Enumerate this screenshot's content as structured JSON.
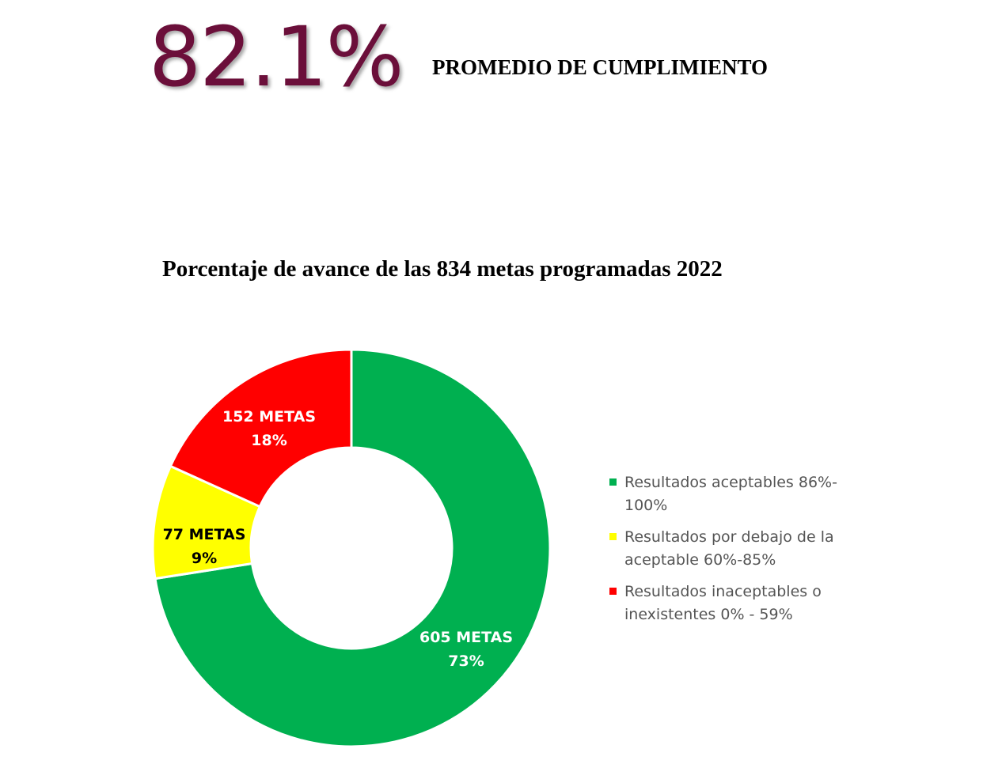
{
  "summary": {
    "value": "82.1%",
    "label": "PROMEDIO DE CUMPLIMIENTO"
  },
  "chart_data": {
    "type": "pie",
    "style": "donut",
    "title": "Porcentaje de avance de las 834 metas programadas 2022",
    "legend_position": "right",
    "slices": [
      {
        "name": "Resultados aceptables 86%-100%",
        "legend_line1": "Resultados aceptables 86%-",
        "legend_line2": "100%",
        "value": 605,
        "percent": 73,
        "label_count": "605 METAS",
        "label_percent": "73%",
        "color": "#00b050",
        "label_color": "#ffffff"
      },
      {
        "name": "Resultados por debajo de la aceptable 60%-85%",
        "legend_line1": "Resultados por debajo de la",
        "legend_line2": "aceptable 60%-85%",
        "value": 77,
        "percent": 9,
        "label_count": "77 METAS",
        "label_percent": "9%",
        "color": "#ffff00",
        "label_color": "#000000"
      },
      {
        "name": "Resultados inaceptables o inexistentes 0% - 59%",
        "legend_line1": "Resultados inaceptables o",
        "legend_line2": "inexistentes 0% - 59%",
        "value": 152,
        "percent": 18,
        "label_count": "152 METAS",
        "label_percent": "18%",
        "color": "#ff0000",
        "label_color": "#ffffff"
      }
    ]
  }
}
